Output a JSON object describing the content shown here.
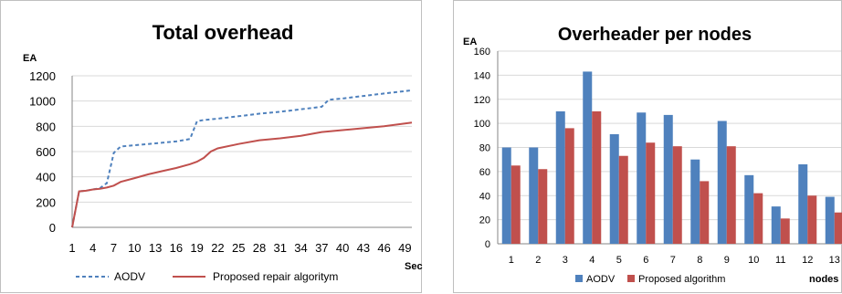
{
  "chart_data": [
    {
      "type": "line",
      "title": "Total overhead",
      "ylabel": "EA",
      "xlabel": "Sec",
      "ylim": [
        0,
        1200
      ],
      "yticks": [
        0,
        200,
        400,
        600,
        800,
        1000,
        1200
      ],
      "xlim": [
        1,
        50
      ],
      "xticks": [
        1,
        4,
        7,
        10,
        13,
        16,
        19,
        22,
        25,
        28,
        31,
        34,
        37,
        40,
        43,
        46,
        49
      ],
      "grid": "horizontal",
      "legend_position": "bottom",
      "series": [
        {
          "name": "AODV",
          "color": "#4f81bd",
          "dash": true,
          "points": [
            [
              1,
              0
            ],
            [
              2,
              285
            ],
            [
              3,
              290
            ],
            [
              4,
              300
            ],
            [
              5,
              310
            ],
            [
              6,
              350
            ],
            [
              7,
              590
            ],
            [
              8,
              640
            ],
            [
              10,
              650
            ],
            [
              12,
              660
            ],
            [
              14,
              670
            ],
            [
              16,
              680
            ],
            [
              18,
              700
            ],
            [
              19,
              840
            ],
            [
              20,
              850
            ],
            [
              22,
              860
            ],
            [
              25,
              880
            ],
            [
              28,
              900
            ],
            [
              31,
              915
            ],
            [
              34,
              935
            ],
            [
              37,
              955
            ],
            [
              38,
              1010
            ],
            [
              40,
              1020
            ],
            [
              43,
              1040
            ],
            [
              46,
              1060
            ],
            [
              50,
              1085
            ]
          ]
        },
        {
          "name": "Proposed repair algoritym",
          "color": "#c0504d",
          "dash": false,
          "points": [
            [
              1,
              0
            ],
            [
              2,
              285
            ],
            [
              3,
              290
            ],
            [
              4,
              300
            ],
            [
              5,
              305
            ],
            [
              6,
              315
            ],
            [
              7,
              330
            ],
            [
              8,
              360
            ],
            [
              10,
              390
            ],
            [
              12,
              420
            ],
            [
              14,
              445
            ],
            [
              16,
              470
            ],
            [
              18,
              500
            ],
            [
              19,
              520
            ],
            [
              20,
              550
            ],
            [
              21,
              600
            ],
            [
              22,
              625
            ],
            [
              25,
              660
            ],
            [
              28,
              690
            ],
            [
              31,
              705
            ],
            [
              34,
              725
            ],
            [
              37,
              755
            ],
            [
              40,
              770
            ],
            [
              43,
              785
            ],
            [
              46,
              800
            ],
            [
              50,
              830
            ]
          ]
        }
      ]
    },
    {
      "type": "bar",
      "title": "Overheader per nodes",
      "ylabel": "EA",
      "xlabel": "nodes",
      "ylim": [
        0,
        160
      ],
      "yticks": [
        0,
        20,
        40,
        60,
        80,
        100,
        120,
        140,
        160
      ],
      "grid": "horizontal",
      "legend_position": "bottom",
      "categories": [
        "1",
        "2",
        "3",
        "4",
        "5",
        "6",
        "7",
        "8",
        "9",
        "10",
        "11",
        "12",
        "13"
      ],
      "series": [
        {
          "name": "AODV",
          "color": "#4f81bd",
          "values": [
            80,
            80,
            110,
            143,
            91,
            109,
            107,
            70,
            102,
            57,
            31,
            66,
            39
          ]
        },
        {
          "name": "Proposed algorithm",
          "color": "#c0504d",
          "values": [
            65,
            62,
            96,
            110,
            73,
            84,
            81,
            52,
            81,
            42,
            21,
            40,
            26
          ]
        }
      ]
    }
  ]
}
